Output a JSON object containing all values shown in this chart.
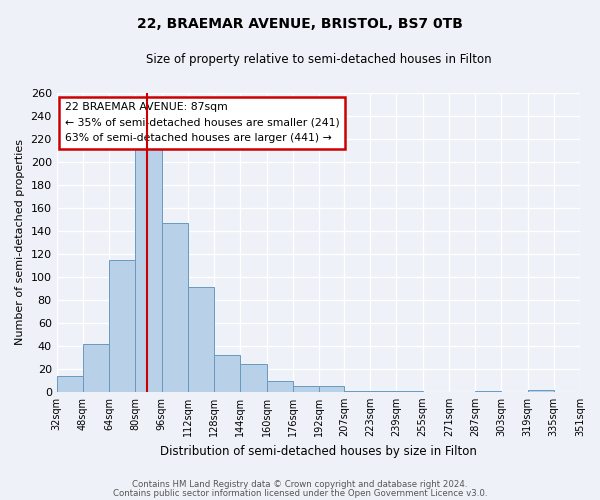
{
  "title1": "22, BRAEMAR AVENUE, BRISTOL, BS7 0TB",
  "title2": "Size of property relative to semi-detached houses in Filton",
  "xlabel": "Distribution of semi-detached houses by size in Filton",
  "ylabel": "Number of semi-detached properties",
  "bin_labels": [
    "32sqm",
    "48sqm",
    "64sqm",
    "80sqm",
    "96sqm",
    "112sqm",
    "128sqm",
    "144sqm",
    "160sqm",
    "176sqm",
    "192sqm",
    "207sqm",
    "223sqm",
    "239sqm",
    "255sqm",
    "271sqm",
    "287sqm",
    "303sqm",
    "319sqm",
    "335sqm",
    "351sqm"
  ],
  "bar_values": [
    14,
    42,
    115,
    216,
    147,
    91,
    32,
    24,
    9,
    5,
    5,
    1,
    1,
    1,
    0,
    0,
    1,
    0,
    2,
    0
  ],
  "bar_color": "#b8d0e8",
  "bar_edge_color": "#6899c0",
  "vline_color": "#cc0000",
  "annotation_title": "22 BRAEMAR AVENUE: 87sqm",
  "annotation_line1": "← 35% of semi-detached houses are smaller (241)",
  "annotation_line2": "63% of semi-detached houses are larger (441) →",
  "annotation_box_edge": "#cc0000",
  "ylim": [
    0,
    260
  ],
  "yticks": [
    0,
    20,
    40,
    60,
    80,
    100,
    120,
    140,
    160,
    180,
    200,
    220,
    240,
    260
  ],
  "bin_edges": [
    32,
    48,
    64,
    80,
    96,
    112,
    128,
    144,
    160,
    176,
    192,
    207,
    223,
    239,
    255,
    271,
    287,
    303,
    319,
    335,
    351
  ],
  "footer1": "Contains HM Land Registry data © Crown copyright and database right 2024.",
  "footer2": "Contains public sector information licensed under the Open Government Licence v3.0.",
  "background_color": "#eef2f8"
}
